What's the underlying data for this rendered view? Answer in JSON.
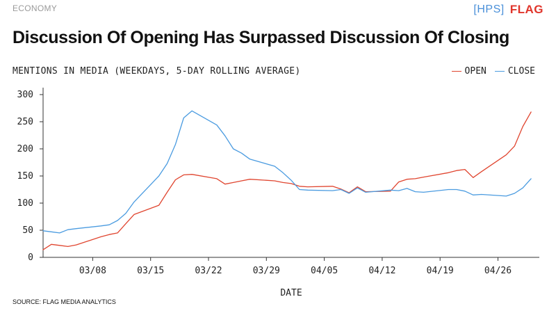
{
  "header": {
    "section": "ECONOMY",
    "brand_hps": "[HPS]",
    "brand_flag": "FLAG"
  },
  "title": "Discussion Of Opening Has Surpassed Discussion Of Closing",
  "subtitle": "MENTIONS IN MEDIA (WEEKDAYS, 5-DAY ROLLING AVERAGE)",
  "source": "SOURCE: FLAG MEDIA ANALYTICS",
  "colors": {
    "open": "#e0452f",
    "close": "#4a9be0",
    "axis": "#333333"
  },
  "chart_data": {
    "type": "line",
    "title": "Discussion Of Opening Has Surpassed Discussion Of Closing",
    "subtitle": "MENTIONS IN MEDIA (WEEKDAYS, 5-DAY ROLLING AVERAGE)",
    "xlabel": "DATE",
    "ylabel": "",
    "ylim": [
      0,
      300
    ],
    "yticks": [
      "0",
      "50",
      "100",
      "150",
      "200",
      "250",
      "300"
    ],
    "xticks": [
      "03/08",
      "03/15",
      "03/22",
      "03/29",
      "04/05",
      "04/12",
      "04/19",
      "04/26"
    ],
    "xlim": [
      "03/02",
      "05/01"
    ],
    "legend_position": "top-right",
    "grid": false,
    "series": [
      {
        "name": "OPEN",
        "color": "#e0452f",
        "points": [
          [
            "03/02",
            14
          ],
          [
            "03/03",
            24
          ],
          [
            "03/04",
            22
          ],
          [
            "03/05",
            20
          ],
          [
            "03/06",
            23
          ],
          [
            "03/09",
            38
          ],
          [
            "03/10",
            42
          ],
          [
            "03/11",
            45
          ],
          [
            "03/12",
            62
          ],
          [
            "03/13",
            79
          ],
          [
            "03/16",
            96
          ],
          [
            "03/17",
            120
          ],
          [
            "03/18",
            143
          ],
          [
            "03/19",
            152
          ],
          [
            "03/20",
            153
          ],
          [
            "03/23",
            145
          ],
          [
            "03/24",
            135
          ],
          [
            "03/25",
            138
          ],
          [
            "03/26",
            141
          ],
          [
            "03/27",
            144
          ],
          [
            "03/30",
            141
          ],
          [
            "03/31",
            138
          ],
          [
            "04/01",
            136
          ],
          [
            "04/02",
            131
          ],
          [
            "04/03",
            130
          ],
          [
            "04/06",
            131
          ],
          [
            "04/07",
            126
          ],
          [
            "04/08",
            119
          ],
          [
            "04/09",
            130
          ],
          [
            "04/10",
            121
          ],
          [
            "04/13",
            122
          ],
          [
            "04/14",
            139
          ],
          [
            "04/15",
            144
          ],
          [
            "04/16",
            145
          ],
          [
            "04/17",
            148
          ],
          [
            "04/20",
            156
          ],
          [
            "04/21",
            160
          ],
          [
            "04/22",
            162
          ],
          [
            "04/23",
            147
          ],
          [
            "04/24",
            158
          ],
          [
            "04/27",
            189
          ],
          [
            "04/28",
            205
          ],
          [
            "04/29",
            241
          ],
          [
            "04/30",
            268
          ]
        ]
      },
      {
        "name": "CLOSE",
        "color": "#4a9be0",
        "points": [
          [
            "03/02",
            49
          ],
          [
            "03/03",
            47
          ],
          [
            "03/04",
            45
          ],
          [
            "03/05",
            51
          ],
          [
            "03/06",
            53
          ],
          [
            "03/09",
            58
          ],
          [
            "03/10",
            60
          ],
          [
            "03/11",
            68
          ],
          [
            "03/12",
            81
          ],
          [
            "03/13",
            102
          ],
          [
            "03/16",
            150
          ],
          [
            "03/17",
            173
          ],
          [
            "03/18",
            208
          ],
          [
            "03/19",
            257
          ],
          [
            "03/20",
            270
          ],
          [
            "03/23",
            244
          ],
          [
            "03/24",
            224
          ],
          [
            "03/25",
            200
          ],
          [
            "03/26",
            192
          ],
          [
            "03/27",
            181
          ],
          [
            "03/30",
            168
          ],
          [
            "03/31",
            156
          ],
          [
            "04/01",
            142
          ],
          [
            "04/02",
            125
          ],
          [
            "04/03",
            124
          ],
          [
            "04/06",
            123
          ],
          [
            "04/07",
            125
          ],
          [
            "04/08",
            118
          ],
          [
            "04/09",
            128
          ],
          [
            "04/10",
            120
          ],
          [
            "04/13",
            124
          ],
          [
            "04/14",
            123
          ],
          [
            "04/15",
            127
          ],
          [
            "04/16",
            121
          ],
          [
            "04/17",
            120
          ],
          [
            "04/20",
            125
          ],
          [
            "04/21",
            125
          ],
          [
            "04/22",
            122
          ],
          [
            "04/23",
            115
          ],
          [
            "04/24",
            116
          ],
          [
            "04/27",
            113
          ],
          [
            "04/28",
            118
          ],
          [
            "04/29",
            128
          ],
          [
            "04/30",
            145
          ]
        ]
      }
    ]
  }
}
